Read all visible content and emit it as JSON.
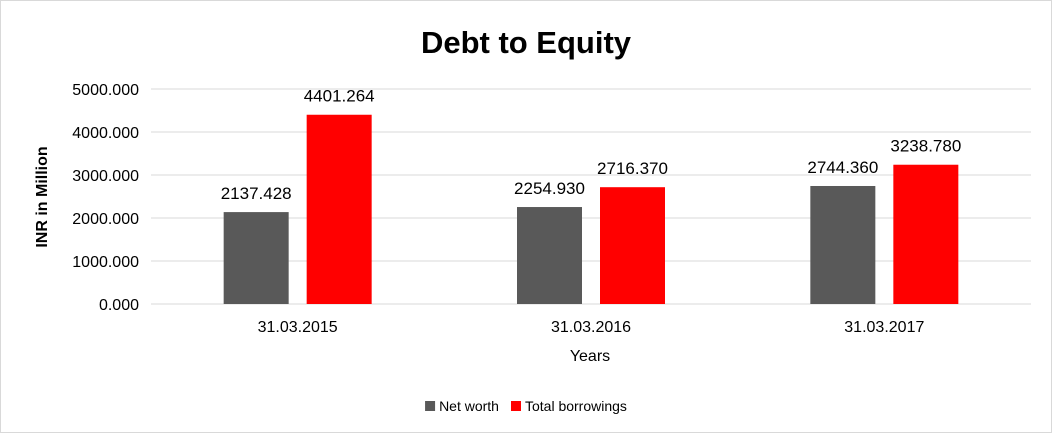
{
  "chart_data": {
    "type": "bar",
    "title": "Debt to Equity",
    "xlabel": "Years",
    "ylabel": "INR in Million",
    "categories": [
      "31.03.2015",
      "31.03.2016",
      "31.03.2017"
    ],
    "series": [
      {
        "name": "Net worth",
        "color": "#595959",
        "values": [
          2137.428,
          2254.93,
          2744.36
        ],
        "labels": [
          "2137.428",
          "2254.930",
          "2744.360"
        ]
      },
      {
        "name": "Total borrowings",
        "color": "#ff0000",
        "values": [
          4401.264,
          2716.37,
          3238.78
        ],
        "labels": [
          "4401.264",
          "2716.370",
          "3238.780"
        ]
      }
    ],
    "ylim": [
      0,
      5000
    ],
    "yticks": [
      "0.000",
      "1000.000",
      "2000.000",
      "3000.000",
      "4000.000",
      "5000.000"
    ],
    "grid": true,
    "legend_position": "bottom"
  }
}
